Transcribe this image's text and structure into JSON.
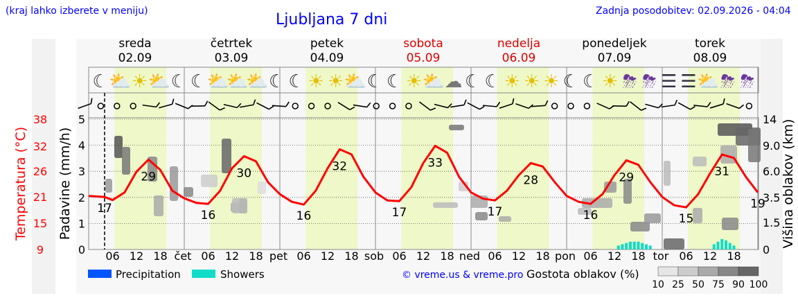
{
  "header": {
    "region_hint": "(kraj lahko izberete v meniju)",
    "title": "Ljubljana 7 dni",
    "last_update": "Zadnja posodobitev: 02.09.2026 - 04:04"
  },
  "days": [
    {
      "name": "sreda",
      "date": "02.09",
      "weekend": false,
      "abbr": ""
    },
    {
      "name": "četrtek",
      "date": "03.09",
      "weekend": false,
      "abbr": "čet"
    },
    {
      "name": "petek",
      "date": "04.09",
      "weekend": false,
      "abbr": "pet"
    },
    {
      "name": "sobota",
      "date": "05.09",
      "weekend": true,
      "abbr": "sob"
    },
    {
      "name": "nedelja",
      "date": "06.09",
      "weekend": true,
      "abbr": "ned"
    },
    {
      "name": "ponedeljek",
      "date": "07.09",
      "weekend": false,
      "abbr": "pon"
    },
    {
      "name": "torek",
      "date": "08.09",
      "weekend": false,
      "abbr": "tor"
    }
  ],
  "colors": {
    "temperature": "#ff0000",
    "precipitation": "#0055ff",
    "showers": "#11dcc8",
    "daylight": "#eef8c8",
    "header_text": "#0000ff",
    "weekend": "#dd0000"
  },
  "icons": [
    "moon-cloud-icon",
    "sun-cloud-icon",
    "sun-icon",
    "sun-cloud-icon",
    "moon-cloud-icon",
    "moon-cloud-icon",
    "sun-cloud-icon",
    "sun-cloud-icon",
    "sun-rain-cloud-icon",
    "moon-icon",
    "moon-icon",
    "sun-icon",
    "sun-icon",
    "sun-cloud-icon",
    "moon-icon",
    "moon-icon",
    "sun-icon",
    "sun-cloud-icon",
    "cloud-icon",
    "moon-cloud-icon",
    "moon-cloud-icon",
    "sun-icon",
    "sun-icon",
    "sun-icon",
    "moon-icon",
    "moon-cloud-icon",
    "sun-icon",
    "sun-thunder-icon",
    "thunder-moon-icon",
    "fog-icon",
    "fog-icon",
    "sun-cloud-icon",
    "sun-thunder-icon",
    "thunder-moon-icon"
  ],
  "legend": {
    "precipitation": "Precipitation",
    "showers": "Showers",
    "copyright": "© vreme.us & vreme.pro",
    "cloud_density_label": "Gostota oblakov (%)",
    "cloud_density_ticks": [
      "10",
      "25",
      "50",
      "75",
      "90",
      "100"
    ]
  },
  "chart_data": {
    "type": "line",
    "x_unit": "hour since 02.09 00:00",
    "x_ticks": [
      "06",
      "12",
      "18",
      "06",
      "12",
      "18",
      "06",
      "12",
      "18",
      "06",
      "12",
      "18",
      "06",
      "12",
      "18",
      "06",
      "12",
      "18",
      "06",
      "12",
      "18"
    ],
    "y_left_outer": {
      "label": "Temperatura (°C)",
      "ticks": [
        "9",
        "15",
        "21",
        "26",
        "32",
        "38"
      ]
    },
    "y_left_inner": {
      "label": "Padavine (mm/h)",
      "ticks": [
        "0",
        "1",
        "2",
        "3",
        "4",
        "5"
      ],
      "ylim": [
        0,
        5
      ]
    },
    "y_right": {
      "label": "Višina oblakov (km)",
      "ticks": [
        "0",
        "1.5",
        "3.5",
        "6.0",
        "9.0",
        "14"
      ]
    },
    "current_time_hour": 4,
    "series": [
      {
        "name": "Temperatura (°C)",
        "color": "#ff0000",
        "points": [
          [
            0,
            18.5
          ],
          [
            4,
            18.2
          ],
          [
            6,
            17.3
          ],
          [
            9,
            19.5
          ],
          [
            12,
            25.5
          ],
          [
            15,
            29
          ],
          [
            18,
            26
          ],
          [
            21,
            20
          ],
          [
            24,
            17.8
          ],
          [
            27,
            16.5
          ],
          [
            30,
            16.2
          ],
          [
            33,
            20
          ],
          [
            36,
            26.5
          ],
          [
            39,
            30
          ],
          [
            42,
            28.5
          ],
          [
            45,
            22.5
          ],
          [
            48,
            19
          ],
          [
            51,
            16.8
          ],
          [
            54,
            16
          ],
          [
            57,
            20
          ],
          [
            60,
            26.5
          ],
          [
            63,
            32
          ],
          [
            66,
            30.5
          ],
          [
            69,
            24
          ],
          [
            72,
            19.5
          ],
          [
            75,
            17.2
          ],
          [
            78,
            17
          ],
          [
            81,
            21
          ],
          [
            84,
            28
          ],
          [
            87,
            33
          ],
          [
            90,
            31
          ],
          [
            93,
            24
          ],
          [
            96,
            19.5
          ],
          [
            99,
            17.7
          ],
          [
            102,
            17.2
          ],
          [
            105,
            20
          ],
          [
            108,
            24.5
          ],
          [
            111,
            28
          ],
          [
            114,
            27
          ],
          [
            117,
            22.5
          ],
          [
            120,
            18.5
          ],
          [
            123,
            16.8
          ],
          [
            126,
            16.2
          ],
          [
            129,
            19
          ],
          [
            132,
            24.5
          ],
          [
            135,
            28.8
          ],
          [
            138,
            27.5
          ],
          [
            141,
            22.5
          ],
          [
            144,
            18.2
          ],
          [
            147,
            15.8
          ],
          [
            150,
            15.2
          ],
          [
            153,
            19
          ],
          [
            156,
            25
          ],
          [
            159,
            30.5
          ],
          [
            162,
            29.5
          ],
          [
            165,
            24
          ],
          [
            168,
            19.5
          ]
        ]
      },
      {
        "name": "Showers",
        "color": "#11dcc8",
        "points": [
          [
            133,
            0.15
          ],
          [
            134,
            0.2
          ],
          [
            135,
            0.25
          ],
          [
            136,
            0.3
          ],
          [
            137,
            0.3
          ],
          [
            138,
            0.3
          ],
          [
            139,
            0.25
          ],
          [
            140,
            0.2
          ],
          [
            141,
            0.15
          ],
          [
            157,
            0.2
          ],
          [
            158,
            0.3
          ],
          [
            159,
            0.4
          ],
          [
            160,
            0.35
          ],
          [
            161,
            0.25
          ],
          [
            162,
            0.15
          ]
        ]
      }
    ],
    "temp_labels": [
      {
        "text": "17",
        "h": 4
      },
      {
        "text": "29",
        "h": 15
      },
      {
        "text": "16",
        "h": 30
      },
      {
        "text": "30",
        "h": 39
      },
      {
        "text": "16",
        "h": 54
      },
      {
        "text": "32",
        "h": 63
      },
      {
        "text": "17",
        "h": 78
      },
      {
        "text": "33",
        "h": 87
      },
      {
        "text": "17",
        "h": 102
      },
      {
        "text": "28",
        "h": 111
      },
      {
        "text": "16",
        "h": 126
      },
      {
        "text": "29",
        "h": 135
      },
      {
        "text": "15",
        "h": 150
      },
      {
        "text": "31",
        "h": 159
      },
      {
        "text": "19",
        "h": 168
      }
    ],
    "grid": true
  }
}
